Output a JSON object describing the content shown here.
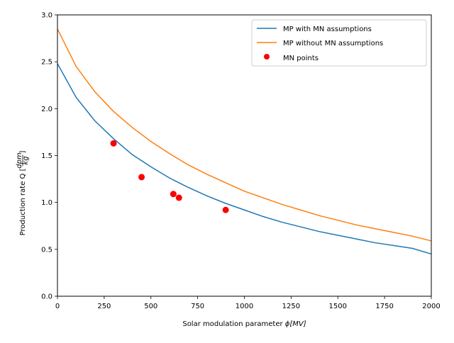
{
  "chart_data": {
    "type": "line",
    "xlabel": "Solar modulation parameter",
    "xlabel_math": "ϕ[MV]",
    "ylabel": "Production rate Q [",
    "ylabel_unit_num": "dpm",
    "ylabel_unit_den": "kg",
    "ylabel_close": "]",
    "xlim": [
      0,
      2000
    ],
    "ylim": [
      0.0,
      3.0
    ],
    "xticks": [
      0,
      250,
      500,
      750,
      1000,
      1250,
      1500,
      1750,
      2000
    ],
    "xtick_labels": [
      "0",
      "250",
      "500",
      "750",
      "1000",
      "1250",
      "1500",
      "1750",
      "2000"
    ],
    "yticks": [
      0.0,
      0.5,
      1.0,
      1.5,
      2.0,
      2.5,
      3.0
    ],
    "ytick_labels": [
      "0.0",
      "0.5",
      "1.0",
      "1.5",
      "2.0",
      "2.5",
      "3.0"
    ],
    "grid": false,
    "legend_position": "top-right",
    "colors": {
      "blue": "#1f77b4",
      "orange": "#ff7f0e",
      "red": "#ff0000"
    },
    "series": [
      {
        "name": "MP with MN assumptions",
        "kind": "line",
        "color": "#1f77b4",
        "x": [
          0,
          100,
          200,
          300,
          400,
          500,
          600,
          700,
          800,
          900,
          1000,
          1100,
          1200,
          1300,
          1400,
          1500,
          1600,
          1700,
          1800,
          1900,
          2000
        ],
        "y": [
          2.48,
          2.12,
          1.87,
          1.68,
          1.51,
          1.38,
          1.26,
          1.16,
          1.07,
          0.99,
          0.92,
          0.85,
          0.79,
          0.74,
          0.69,
          0.65,
          0.61,
          0.57,
          0.54,
          0.51,
          0.45
        ]
      },
      {
        "name": "MP without MN assumptions",
        "kind": "line",
        "color": "#ff7f0e",
        "x": [
          0,
          100,
          200,
          300,
          400,
          500,
          600,
          700,
          800,
          900,
          1000,
          1100,
          1200,
          1300,
          1400,
          1500,
          1600,
          1700,
          1800,
          1900,
          2000
        ],
        "y": [
          2.85,
          2.45,
          2.18,
          1.97,
          1.8,
          1.65,
          1.52,
          1.4,
          1.3,
          1.21,
          1.12,
          1.05,
          0.98,
          0.92,
          0.86,
          0.81,
          0.76,
          0.72,
          0.68,
          0.64,
          0.59
        ]
      },
      {
        "name": "MN points",
        "kind": "points",
        "color": "#ff0000",
        "x": [
          300,
          450,
          620,
          650,
          900
        ],
        "y": [
          1.63,
          1.27,
          1.09,
          1.05,
          0.92
        ]
      }
    ]
  }
}
